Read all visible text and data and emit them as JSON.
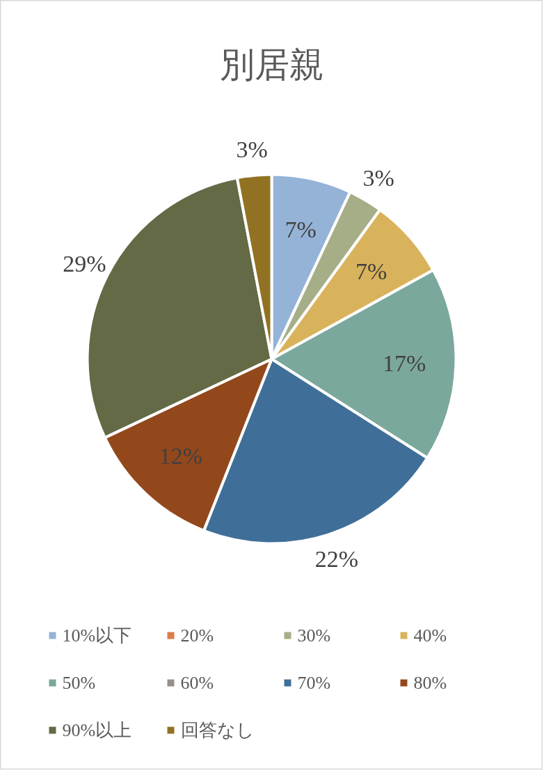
{
  "chart_data": {
    "type": "pie",
    "title": "別居親",
    "categories": [
      "10%以下",
      "20%",
      "30%",
      "40%",
      "50%",
      "60%",
      "70%",
      "80%",
      "90%以上",
      "回答なし"
    ],
    "values": [
      7,
      0,
      3,
      7,
      17,
      0,
      22,
      12,
      29,
      3
    ],
    "value_labels": [
      "7%",
      null,
      "3%",
      "7%",
      "17%",
      null,
      "22%",
      "12%",
      "29%",
      "3%"
    ],
    "colors": [
      "#95b3d7",
      "#e07b47",
      "#a5ae86",
      "#d9b25c",
      "#7ba89c",
      "#978f8c",
      "#3f6f98",
      "#93481c",
      "#636a45",
      "#917222"
    ],
    "legend": "bottom"
  }
}
